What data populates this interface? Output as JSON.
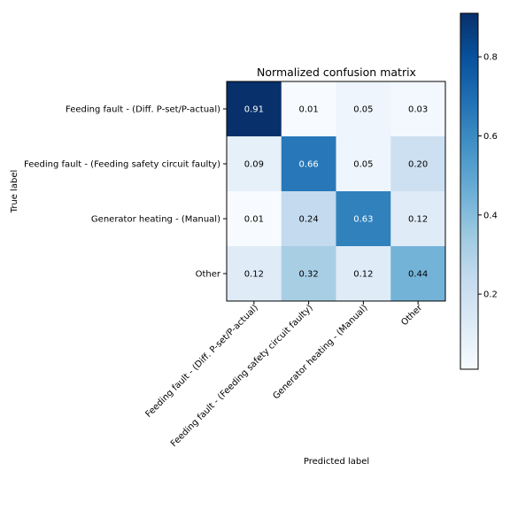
{
  "chart_data": {
    "type": "heatmap",
    "title": "Normalized confusion matrix",
    "xlabel": "Predicted label",
    "ylabel": "True label",
    "x_categories": [
      "Feeding fault - (Diff. P-set/P-actual)",
      "Feeding fault - (Feeding safety circuit faulty)",
      "Generator heating - (Manual)",
      "Other"
    ],
    "y_categories": [
      "Feeding fault - (Diff. P-set/P-actual)",
      "Feeding fault - (Feeding safety circuit faulty)",
      "Generator heating - (Manual)",
      "Other"
    ],
    "values": [
      [
        0.91,
        0.01,
        0.05,
        0.03
      ],
      [
        0.09,
        0.66,
        0.05,
        0.2
      ],
      [
        0.01,
        0.24,
        0.63,
        0.12
      ],
      [
        0.12,
        0.32,
        0.12,
        0.44
      ]
    ],
    "cell_labels": [
      [
        "0.91",
        "0.01",
        "0.05",
        "0.03"
      ],
      [
        "0.09",
        "0.66",
        "0.05",
        "0.20"
      ],
      [
        "0.01",
        "0.24",
        "0.63",
        "0.12"
      ],
      [
        "0.12",
        "0.32",
        "0.12",
        "0.44"
      ]
    ],
    "colormap": "Blues",
    "colorbar": {
      "range": [
        0.01,
        0.91
      ],
      "ticks": [
        0.2,
        0.4,
        0.6,
        0.8
      ],
      "tick_labels": [
        "0.2",
        "0.4",
        "0.6",
        "0.8"
      ]
    },
    "grid": false
  }
}
